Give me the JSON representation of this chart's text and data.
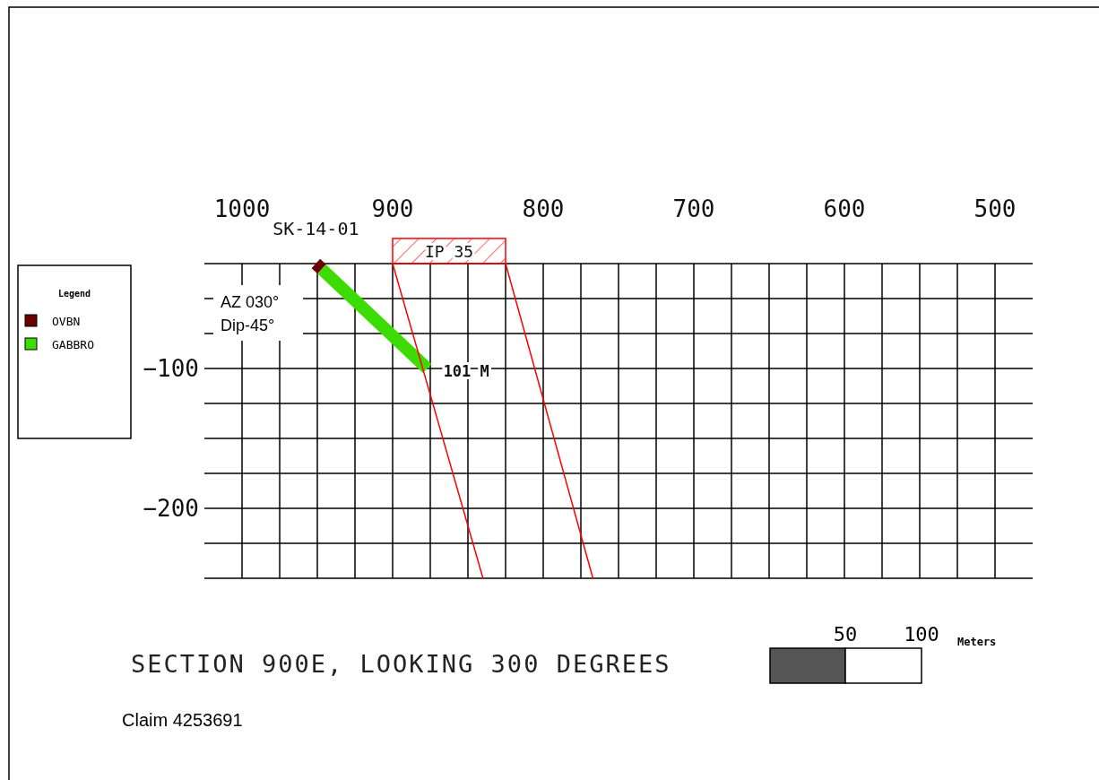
{
  "chart_data": {
    "type": "line",
    "title": "SECTION 900E, LOOKING 300 DEGREES",
    "legend_title": "Legend",
    "legend": "left",
    "grid": true,
    "xlim": [
      1025,
      475
    ],
    "ylim": [
      -250,
      -25
    ],
    "xticks": [
      1000,
      {
        "value": 975,
        "label": null
      },
      {
        "value": 950,
        "label": null
      },
      {
        "value": 925,
        "label": null
      },
      900,
      {
        "value": 875,
        "label": null
      },
      {
        "value": 850,
        "label": null
      },
      {
        "value": 825,
        "label": null
      },
      800,
      {
        "value": 775,
        "label": null
      },
      {
        "value": 750,
        "label": null
      },
      {
        "value": 725,
        "label": null
      },
      700,
      {
        "value": 675,
        "label": null
      },
      {
        "value": 650,
        "label": null
      },
      {
        "value": 625,
        "label": null
      },
      600,
      {
        "value": 575,
        "label": null
      },
      {
        "value": 550,
        "label": null
      },
      {
        "value": 525,
        "label": null
      },
      500
    ],
    "yticks": [
      {
        "value": -250,
        "label": null
      },
      {
        "value": -225,
        "label": null
      },
      -200,
      {
        "value": -175,
        "label": null
      },
      {
        "value": -150,
        "label": null
      },
      {
        "value": -125,
        "label": null
      },
      -100,
      {
        "value": -75,
        "label": null
      },
      {
        "value": -50,
        "label": null
      },
      {
        "value": -25,
        "label": null
      }
    ],
    "series": [
      {
        "name": "OVBN",
        "color": "#6b0000",
        "x": [
          951,
          947
        ],
        "values": [
          -25,
          -29
        ]
      },
      {
        "name": "GABBRO",
        "color": "#3ddc00",
        "x": [
          947,
          877
        ],
        "values": [
          -29,
          -100
        ]
      },
      {
        "color": "#ff0000",
        "x": [
          900,
          840
        ],
        "values": [
          -25,
          -250
        ]
      },
      {
        "color": "#ff0000",
        "x": [
          825,
          767
        ],
        "values": [
          -25,
          -250
        ]
      }
    ],
    "annotations": [
      "SK-14-01",
      "IP 35",
      {
        "text": "101 M",
        "x": 877,
        "y": -100
      },
      "AZ 030°",
      "Dip-45°",
      "Claim  4253691",
      "50",
      "100",
      "Meters"
    ]
  }
}
